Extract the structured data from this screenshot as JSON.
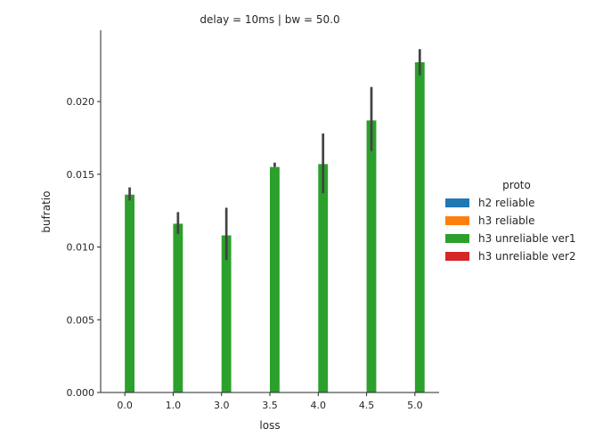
{
  "chart_data": {
    "type": "bar",
    "title": "delay = 10ms | bw = 50.0",
    "xlabel": "loss",
    "ylabel": "bufratio",
    "categories": [
      "0.0",
      "1.0",
      "3.0",
      "3.5",
      "4.0",
      "4.5",
      "5.0"
    ],
    "ylim": [
      0,
      0.0249
    ],
    "yticks": [
      "0.000",
      "0.005",
      "0.010",
      "0.015",
      "0.020"
    ],
    "ytick_values": [
      0,
      0.005,
      0.01,
      0.015,
      0.02
    ],
    "legend": {
      "title": "proto",
      "placement": "right",
      "entries": [
        "h2 reliable",
        "h3 reliable",
        "h3 unreliable ver1",
        "h3 unreliable ver2"
      ]
    },
    "colors": {
      "h2 reliable": "#1f77b4",
      "h3 reliable": "#ff7f0e",
      "h3 unreliable ver1": "#2ca02c",
      "h3 unreliable ver2": "#d62728",
      "errorbar": "#424242"
    },
    "series": [
      {
        "name": "h2 reliable",
        "values": [
          null,
          null,
          null,
          null,
          null,
          null,
          null
        ],
        "ci_low": [],
        "ci_high": []
      },
      {
        "name": "h3 reliable",
        "values": [
          null,
          null,
          null,
          null,
          null,
          null,
          null
        ],
        "ci_low": [],
        "ci_high": []
      },
      {
        "name": "h3 unreliable ver1",
        "values": [
          0.0136,
          0.0116,
          0.0108,
          0.0155,
          0.0157,
          0.0187,
          0.0227
        ],
        "ci_low": [
          0.0132,
          0.0109,
          0.0091,
          0.0155,
          0.0137,
          0.0166,
          0.0218
        ],
        "ci_high": [
          0.0141,
          0.0124,
          0.0127,
          0.0158,
          0.0178,
          0.021,
          0.0236
        ]
      },
      {
        "name": "h3 unreliable ver2",
        "values": [
          null,
          null,
          null,
          null,
          null,
          null,
          null
        ],
        "ci_low": [],
        "ci_high": []
      }
    ]
  }
}
